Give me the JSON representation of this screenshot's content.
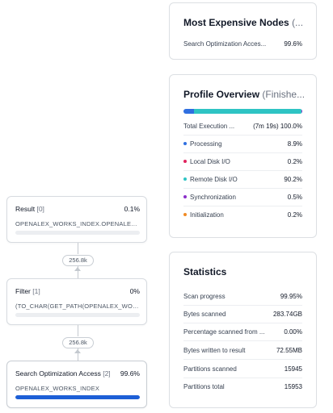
{
  "colors": {
    "processing": "#2f6fe0",
    "local_disk_io": "#e0245e",
    "remote_disk_io": "#2ec4c4",
    "synchronization": "#8b2fc9",
    "initialization": "#f08a24",
    "progress_fill": "#1d5fd6"
  },
  "expensive_nodes": {
    "title": "Most Expensive Nodes",
    "title_suffix": "(...",
    "items": [
      {
        "label": "Search Optimization Acces...",
        "value": "99.6%"
      }
    ]
  },
  "profile_overview": {
    "title": "Profile Overview",
    "title_suffix": "(Finishe...",
    "total": {
      "label": "Total Execution ...",
      "duration": "(7m 19s)",
      "value": "100.0%"
    },
    "items": [
      {
        "label": "Processing",
        "value": "8.9%",
        "fraction": 0.089,
        "color_key": "processing"
      },
      {
        "label": "Local Disk I/O",
        "value": "0.2%",
        "fraction": 0.002,
        "color_key": "local_disk_io"
      },
      {
        "label": "Remote Disk I/O",
        "value": "90.2%",
        "fraction": 0.902,
        "color_key": "remote_disk_io"
      },
      {
        "label": "Synchronization",
        "value": "0.5%",
        "fraction": 0.005,
        "color_key": "synchronization"
      },
      {
        "label": "Initialization",
        "value": "0.2%",
        "fraction": 0.002,
        "color_key": "initialization"
      }
    ]
  },
  "statistics": {
    "title": "Statistics",
    "items": [
      {
        "label": "Scan progress",
        "value": "99.95%"
      },
      {
        "label": "Bytes scanned",
        "value": "283.74GB"
      },
      {
        "label": "Percentage scanned from ...",
        "value": "0.00%"
      },
      {
        "label": "Bytes written to result",
        "value": "72.55MB"
      },
      {
        "label": "Partitions scanned",
        "value": "15945"
      },
      {
        "label": "Partitions total",
        "value": "15953"
      }
    ]
  },
  "operator_tree": {
    "nodes": [
      {
        "name": "Result",
        "index": "[0]",
        "percent": "0.1%",
        "detail": "OPENALEX_WORKS_INDEX.OPENALEX_...",
        "fraction": 0.001
      },
      {
        "name": "Filter",
        "index": "[1]",
        "percent": "0%",
        "detail": "(TO_CHAR(GET_PATH(OPENALEX_WOR...",
        "fraction": 0.0
      },
      {
        "name": "Search Optimization Access",
        "index": "[2]",
        "percent": "99.6%",
        "detail": "OPENALEX_WORKS_INDEX",
        "fraction": 0.996
      }
    ],
    "edges": [
      {
        "rows": "256.8k"
      },
      {
        "rows": "256.8k"
      }
    ]
  }
}
